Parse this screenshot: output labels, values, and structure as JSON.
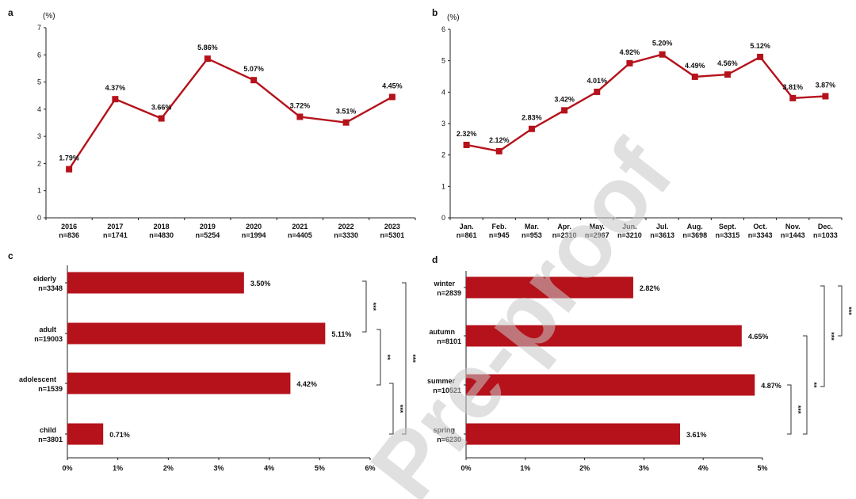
{
  "watermark": "Pre-proof",
  "chart_data": [
    {
      "panel": "a",
      "type": "line",
      "unit_label": "(%)",
      "categories": [
        "2016",
        "2017",
        "2018",
        "2019",
        "2020",
        "2021",
        "2022",
        "2023"
      ],
      "n_labels": [
        "n=836",
        "n=1741",
        "n=4830",
        "n=5254",
        "n=1994",
        "n=4405",
        "n=3330",
        "n=5301"
      ],
      "values": [
        1.79,
        4.37,
        3.66,
        5.86,
        5.07,
        3.72,
        3.51,
        4.45
      ],
      "value_labels": [
        "1.79%",
        "4.37%",
        "3.66%",
        "5.86%",
        "5.07%",
        "3.72%",
        "3.51%",
        "4.45%"
      ],
      "ylim": [
        0,
        7
      ],
      "yticks": [
        "0",
        "1",
        "2",
        "3",
        "4",
        "5",
        "6",
        "7"
      ],
      "color": "#b5121b"
    },
    {
      "panel": "b",
      "type": "line",
      "unit_label": "(%)",
      "categories": [
        "Jan.",
        "Feb.",
        "Mar.",
        "Apr.",
        "May.",
        "Jun.",
        "Jul.",
        "Aug.",
        "Sept.",
        "Oct.",
        "Nov.",
        "Dec."
      ],
      "n_labels": [
        "n=861",
        "n=945",
        "n=953",
        "n=2310",
        "n=2967",
        "n=3210",
        "n=3613",
        "n=3698",
        "n=3315",
        "n=3343",
        "n=1443",
        "n=1033"
      ],
      "values": [
        2.32,
        2.12,
        2.83,
        3.42,
        4.01,
        4.92,
        5.2,
        4.49,
        4.56,
        5.12,
        3.81,
        3.87
      ],
      "value_labels": [
        "2.32%",
        "2.12%",
        "2.83%",
        "3.42%",
        "4.01%",
        "4.92%",
        "5.20%",
        "4.49%",
        "4.56%",
        "5.12%",
        "3.81%",
        "3.87%"
      ],
      "ylim": [
        0,
        6
      ],
      "yticks": [
        "0",
        "1",
        "2",
        "3",
        "4",
        "5",
        "6"
      ],
      "color": "#b5121b"
    },
    {
      "panel": "c",
      "type": "bar",
      "orientation": "horizontal",
      "categories": [
        "elderly",
        "adult",
        "adolescent",
        "child"
      ],
      "n_labels": [
        "n=3348",
        "n=19003",
        "n=1539",
        "n=3801"
      ],
      "values": [
        3.5,
        5.11,
        4.42,
        0.71
      ],
      "value_labels": [
        "3.50%",
        "5.11%",
        "4.42%",
        "0.71%"
      ],
      "xlim": [
        0,
        6
      ],
      "xticks": [
        "0%",
        "1%",
        "2%",
        "3%",
        "4%",
        "5%",
        "6%"
      ],
      "color": "#b5121b",
      "significance": [
        {
          "from": 0,
          "to": 1,
          "label": "***"
        },
        {
          "from": 1,
          "to": 2,
          "label": "**"
        },
        {
          "from": 2,
          "to": 3,
          "label": "***"
        },
        {
          "from": 0,
          "to": 3,
          "label": "***"
        }
      ]
    },
    {
      "panel": "d",
      "type": "bar",
      "orientation": "horizontal",
      "categories": [
        "winter",
        "autumn",
        "summer",
        "spring"
      ],
      "n_labels": [
        "n=2839",
        "n=8101",
        "n=10521",
        "n=6230"
      ],
      "values": [
        2.82,
        4.65,
        4.87,
        3.61
      ],
      "value_labels": [
        "2.82%",
        "4.65%",
        "4.87%",
        "3.61%"
      ],
      "xlim": [
        0,
        5
      ],
      "xticks": [
        "0%",
        "1%",
        "2%",
        "3%",
        "4%",
        "5%"
      ],
      "color": "#b5121b",
      "significance": [
        {
          "from": 0,
          "to": 1,
          "label": "***"
        },
        {
          "from": 0,
          "to": 2,
          "label": "***"
        },
        {
          "from": 1,
          "to": 3,
          "label": "**"
        },
        {
          "from": 2,
          "to": 3,
          "label": "***"
        }
      ]
    }
  ]
}
